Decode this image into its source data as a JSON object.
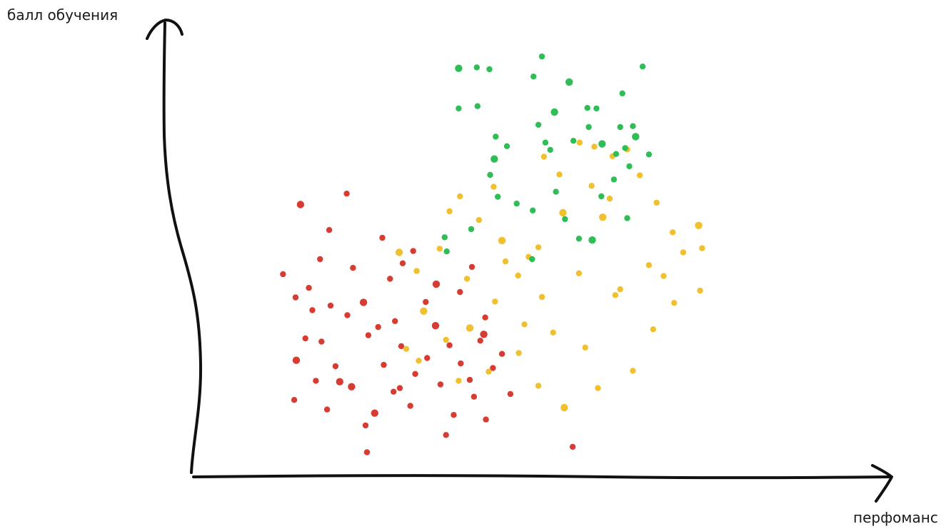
{
  "chart_data": {
    "type": "scatter",
    "title": "",
    "xlabel": "перфоманс",
    "ylabel": "балл обучения",
    "xlim": [
      0,
      100
    ],
    "ylim": [
      0,
      100
    ],
    "grid": false,
    "legend": "none",
    "series": [
      {
        "color": "#d63c32",
        "points": [
          [
            15.6,
            59.8
          ],
          [
            22.2,
            62.2
          ],
          [
            27.3,
            52.5
          ],
          [
            30.2,
            46.9
          ],
          [
            18.4,
            47.8
          ],
          [
            28.4,
            43.5
          ],
          [
            23.1,
            45.9
          ],
          [
            35.0,
            42.3
          ],
          [
            14.9,
            39.4
          ],
          [
            19.9,
            37.6
          ],
          [
            17.3,
            36.6
          ],
          [
            22.3,
            35.5
          ],
          [
            29.1,
            34.2
          ],
          [
            26.7,
            32.9
          ],
          [
            34.9,
            33.2
          ],
          [
            16.3,
            30.4
          ],
          [
            18.6,
            29.7
          ],
          [
            25.3,
            31.1
          ],
          [
            30.0,
            28.7
          ],
          [
            36.9,
            28.9
          ],
          [
            41.3,
            29.9
          ],
          [
            15.0,
            25.6
          ],
          [
            20.6,
            24.3
          ],
          [
            27.5,
            24.6
          ],
          [
            33.7,
            26.1
          ],
          [
            38.5,
            24.9
          ],
          [
            43.1,
            23.9
          ],
          [
            17.8,
            21.1
          ],
          [
            22.9,
            19.8
          ],
          [
            28.9,
            18.7
          ],
          [
            35.6,
            20.3
          ],
          [
            40.4,
            17.6
          ],
          [
            45.6,
            18.2
          ],
          [
            14.7,
            16.9
          ],
          [
            19.4,
            14.8
          ],
          [
            26.2,
            14.0
          ],
          [
            31.3,
            15.6
          ],
          [
            37.5,
            13.6
          ],
          [
            42.1,
            12.6
          ],
          [
            24.9,
            11.3
          ],
          [
            36.4,
            9.2
          ],
          [
            25.1,
            5.4
          ],
          [
            21.2,
            20.9
          ],
          [
            32.0,
            22.6
          ],
          [
            39.8,
            21.3
          ],
          [
            44.4,
            27.0
          ],
          [
            13.1,
            44.5
          ],
          [
            31.7,
            49.6
          ],
          [
            19.7,
            54.2
          ],
          [
            24.6,
            38.3
          ],
          [
            38.4,
            40.6
          ],
          [
            42.0,
            35.0
          ],
          [
            16.8,
            41.5
          ],
          [
            40.1,
            46.1
          ],
          [
            33.5,
            38.4
          ],
          [
            29.8,
            19.5
          ],
          [
            41.8,
            31.3
          ],
          [
            54.5,
            6.6
          ]
        ]
      },
      {
        "color": "#f0c02e",
        "points": [
          [
            29.7,
            49.3
          ],
          [
            32.2,
            45.2
          ],
          [
            35.5,
            50.1
          ],
          [
            36.9,
            58.3
          ],
          [
            38.4,
            61.6
          ],
          [
            41.1,
            56.4
          ],
          [
            43.2,
            63.7
          ],
          [
            44.4,
            51.9
          ],
          [
            46.7,
            44.2
          ],
          [
            49.6,
            50.4
          ],
          [
            50.4,
            70.3
          ],
          [
            52.6,
            66.4
          ],
          [
            55.5,
            73.4
          ],
          [
            57.2,
            63.9
          ],
          [
            58.8,
            57.0
          ],
          [
            60.2,
            70.4
          ],
          [
            62.3,
            71.9
          ],
          [
            64.1,
            66.2
          ],
          [
            66.5,
            60.2
          ],
          [
            68.8,
            53.7
          ],
          [
            70.3,
            49.3
          ],
          [
            72.5,
            55.2
          ],
          [
            65.4,
            46.5
          ],
          [
            61.3,
            41.2
          ],
          [
            55.4,
            44.7
          ],
          [
            50.1,
            39.5
          ],
          [
            47.6,
            33.5
          ],
          [
            43.4,
            38.5
          ],
          [
            39.8,
            32.7
          ],
          [
            36.4,
            30.1
          ],
          [
            32.5,
            25.5
          ],
          [
            38.2,
            21.1
          ],
          [
            42.5,
            23.1
          ],
          [
            46.8,
            27.2
          ],
          [
            49.6,
            20.0
          ],
          [
            53.3,
            15.2
          ],
          [
            58.1,
            19.5
          ],
          [
            63.1,
            23.3
          ],
          [
            66.0,
            32.4
          ],
          [
            69.0,
            38.2
          ],
          [
            72.7,
            40.9
          ],
          [
            73.0,
            50.2
          ],
          [
            53.1,
            58.0
          ],
          [
            48.2,
            48.3
          ],
          [
            44.9,
            47.3
          ],
          [
            51.7,
            31.7
          ],
          [
            56.3,
            28.4
          ],
          [
            60.6,
            39.9
          ],
          [
            30.7,
            28.1
          ],
          [
            33.2,
            36.4
          ],
          [
            39.4,
            43.5
          ],
          [
            67.5,
            44.1
          ],
          [
            57.6,
            72.5
          ],
          [
            59.8,
            61.1
          ]
        ]
      },
      {
        "color": "#2fbd55",
        "points": [
          [
            38.2,
            89.7
          ],
          [
            40.8,
            89.9
          ],
          [
            42.6,
            89.5
          ],
          [
            38.2,
            80.9
          ],
          [
            40.9,
            81.4
          ],
          [
            48.9,
            87.9
          ],
          [
            50.1,
            92.3
          ],
          [
            54.0,
            86.7
          ],
          [
            56.6,
            81.0
          ],
          [
            57.9,
            80.9
          ],
          [
            61.6,
            84.2
          ],
          [
            64.5,
            90.1
          ],
          [
            63.1,
            77.0
          ],
          [
            60.7,
            70.9
          ],
          [
            58.7,
            73.1
          ],
          [
            56.8,
            76.8
          ],
          [
            54.6,
            73.8
          ],
          [
            51.3,
            71.8
          ],
          [
            49.6,
            77.3
          ],
          [
            45.1,
            72.6
          ],
          [
            43.5,
            74.7
          ],
          [
            43.3,
            69.8
          ],
          [
            46.5,
            60.0
          ],
          [
            48.8,
            58.5
          ],
          [
            55.4,
            52.3
          ],
          [
            53.4,
            56.6
          ],
          [
            58.6,
            61.6
          ],
          [
            62.3,
            56.8
          ],
          [
            57.3,
            52.0
          ],
          [
            52.1,
            62.6
          ],
          [
            60.4,
            65.3
          ],
          [
            62.6,
            68.2
          ],
          [
            65.4,
            70.8
          ],
          [
            62.0,
            72.2
          ],
          [
            61.3,
            76.8
          ],
          [
            63.5,
            74.7
          ],
          [
            48.7,
            47.8
          ],
          [
            36.5,
            49.5
          ],
          [
            36.2,
            52.6
          ],
          [
            43.8,
            61.5
          ],
          [
            42.7,
            66.3
          ],
          [
            40.0,
            54.4
          ],
          [
            51.9,
            80.1
          ],
          [
            50.6,
            73.4
          ]
        ]
      }
    ]
  }
}
